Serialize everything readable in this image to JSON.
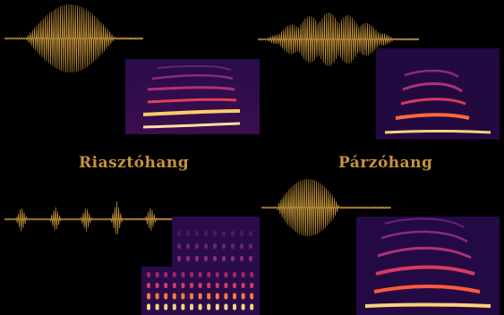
{
  "labels": {
    "left": "Riasztóhang",
    "right": "Párzóhang"
  },
  "colors": {
    "background": "#000000",
    "waveform": "#c8963c",
    "label": "#c8923c",
    "spectrogram_low": "#1a0630",
    "spectrogram_mid": "#a3236b",
    "spectrogram_high": "#ffd27a"
  },
  "panels": [
    {
      "name": "top-left",
      "type": "waveform-spectrogram"
    },
    {
      "name": "top-right",
      "type": "waveform-spectrogram"
    },
    {
      "name": "bottom-left",
      "type": "pulse-train-spectrogram"
    },
    {
      "name": "bottom-right",
      "type": "waveform-spectrogram"
    }
  ]
}
